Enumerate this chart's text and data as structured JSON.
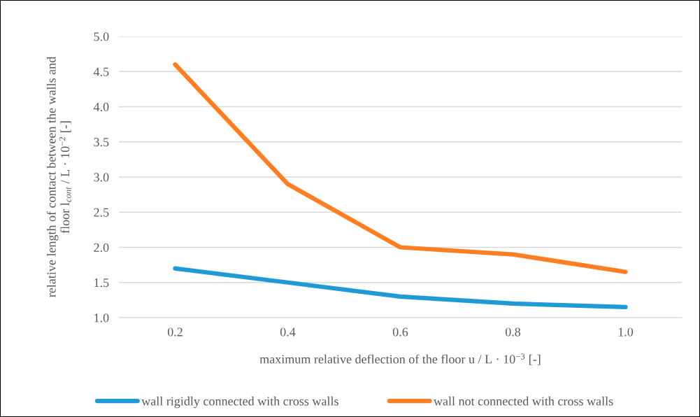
{
  "chart_data": {
    "type": "line",
    "xlabel": "maximum relative deflection of the floor u / L · 10$^{−3}$ [-]",
    "ylabel": "relative length of contact between the walls and\nfloor l$_{cont}$ / L · 10$^{−2}$ [-]",
    "categories": [
      "0.2",
      "0.4",
      "0.6",
      "0.8",
      "1.0"
    ],
    "series": [
      {
        "name": "wall rigidly connected with cross walls",
        "color": "#1f9ad6",
        "values": [
          1.7,
          1.5,
          1.3,
          1.2,
          1.15
        ]
      },
      {
        "name": "wall not connected with cross walls",
        "color": "#fe7f23",
        "values": [
          4.6,
          2.9,
          2.0,
          1.9,
          1.65
        ]
      }
    ],
    "ylim": [
      1.0,
      5.0
    ],
    "yticks": [
      {
        "value": 1,
        "label": "1.0"
      },
      1.5,
      {
        "value": 2,
        "label": "2.0"
      },
      2.5,
      {
        "value": 3,
        "label": "3.0"
      },
      3.5,
      {
        "value": 4,
        "label": "4.0"
      },
      4.5,
      {
        "value": 5,
        "label": "5.0"
      }
    ],
    "grid": "y",
    "legend": "bottom",
    "marker": "none",
    "line_style": "solid"
  }
}
